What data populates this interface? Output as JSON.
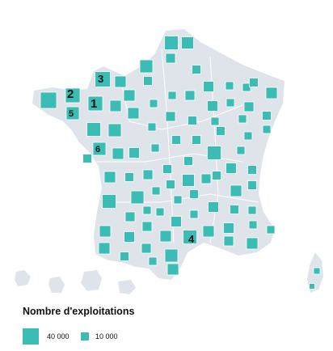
{
  "map": {
    "land_color": "#dfe3ea",
    "border_color": "#ffffff",
    "symbol_color": "#3bbcb4",
    "symbol_outline": "#ffffff",
    "rank_labels": [
      "1",
      "2",
      "3",
      "4",
      "5",
      "6"
    ]
  },
  "legend": {
    "title": "Nombre d'exploitations",
    "items": [
      {
        "label": "40 000",
        "value": 40000
      },
      {
        "label": "10 000",
        "value": 10000
      }
    ]
  }
}
